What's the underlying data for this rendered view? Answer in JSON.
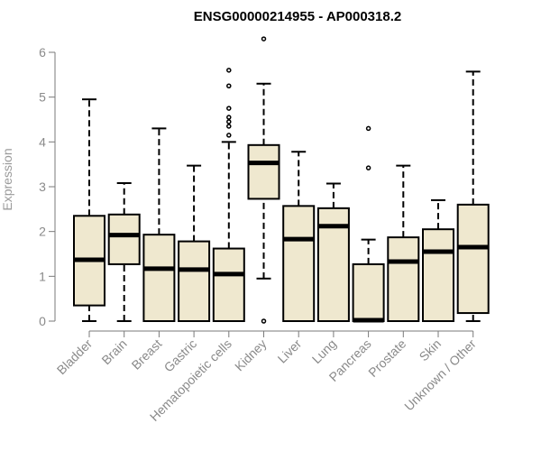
{
  "chart_data": {
    "type": "boxplot",
    "title": "ENSG00000214955 - AP000318.2",
    "ylabel": "Expression",
    "ylim": [
      0,
      6
    ],
    "yticks": [
      0,
      1,
      2,
      3,
      4,
      5,
      6
    ],
    "colors": {
      "box_fill": "#efe8cf",
      "box_stroke": "#000000",
      "axis": "#7a7a7a",
      "tick_text": "#8a8a8a"
    },
    "categories": [
      "Bladder",
      "Brain",
      "Breast",
      "Gastric",
      "Hematopoietic cells",
      "Kidney",
      "Liver",
      "Lung",
      "Pancreas",
      "Prostate",
      "Skin",
      "Unknown / Other"
    ],
    "boxes": [
      {
        "category": "Bladder",
        "min": 0.0,
        "q1": 0.35,
        "median": 1.37,
        "q3": 2.35,
        "max": 4.95,
        "outliers": []
      },
      {
        "category": "Brain",
        "min": 0.0,
        "q1": 1.27,
        "median": 1.92,
        "q3": 2.38,
        "max": 3.08,
        "outliers": []
      },
      {
        "category": "Breast",
        "min": 0.0,
        "q1": 0.0,
        "median": 1.17,
        "q3": 1.93,
        "max": 4.3,
        "outliers": []
      },
      {
        "category": "Gastric",
        "min": 0.0,
        "q1": 0.0,
        "median": 1.15,
        "q3": 1.78,
        "max": 3.47,
        "outliers": []
      },
      {
        "category": "Hematopoietic cells",
        "min": 0.0,
        "q1": 0.0,
        "median": 1.05,
        "q3": 1.62,
        "max": 4.0,
        "outliers": [
          4.15,
          4.35,
          4.45,
          4.55,
          4.75,
          5.25,
          5.6
        ]
      },
      {
        "category": "Kidney",
        "min": 0.95,
        "q1": 2.73,
        "median": 3.53,
        "q3": 3.93,
        "max": 5.3,
        "outliers": [
          0.0,
          6.3
        ]
      },
      {
        "category": "Liver",
        "min": 0.0,
        "q1": 0.0,
        "median": 1.83,
        "q3": 2.57,
        "max": 3.78,
        "outliers": []
      },
      {
        "category": "Lung",
        "min": 0.0,
        "q1": 0.0,
        "median": 2.12,
        "q3": 2.52,
        "max": 3.07,
        "outliers": []
      },
      {
        "category": "Pancreas",
        "min": 0.0,
        "q1": 0.0,
        "median": 0.02,
        "q3": 1.27,
        "max": 1.82,
        "outliers": [
          3.42,
          4.3
        ]
      },
      {
        "category": "Prostate",
        "min": 0.0,
        "q1": 0.0,
        "median": 1.33,
        "q3": 1.87,
        "max": 3.47,
        "outliers": []
      },
      {
        "category": "Skin",
        "min": 0.0,
        "q1": 0.0,
        "median": 1.55,
        "q3": 2.05,
        "max": 2.7,
        "outliers": []
      },
      {
        "category": "Unknown / Other",
        "min": 0.0,
        "q1": 0.18,
        "median": 1.65,
        "q3": 2.6,
        "max": 5.57,
        "outliers": []
      }
    ]
  }
}
